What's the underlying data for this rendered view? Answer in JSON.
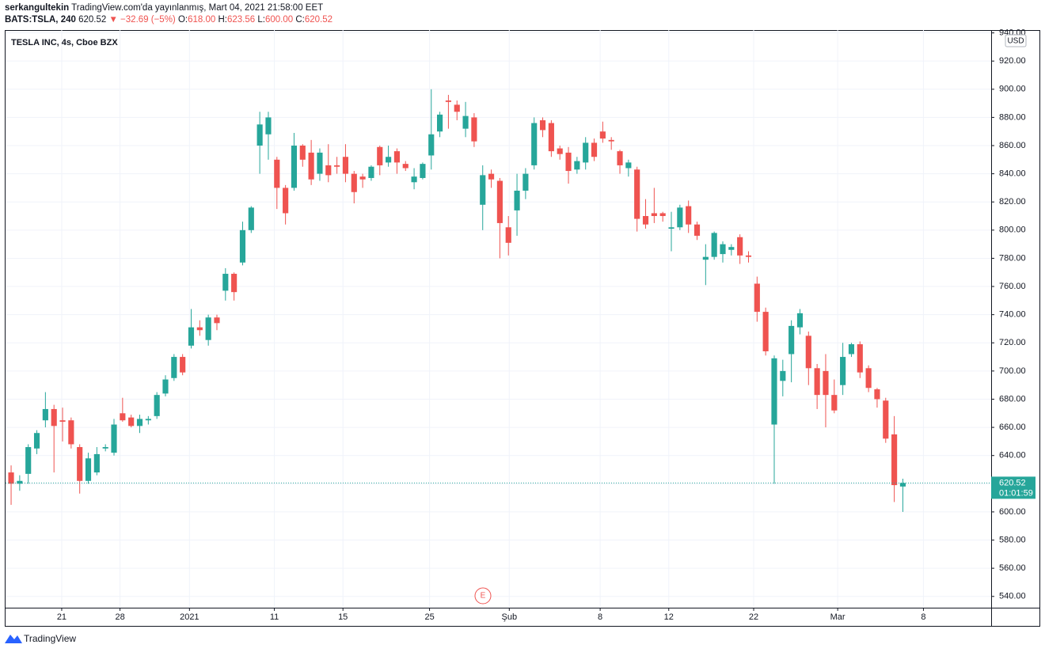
{
  "header": {
    "author": "serkangultekin",
    "published": "TradingView.com'da yayınlanmış, Mart 04, 2021 21:58:00 EET",
    "symbol": "BATS:TSLA, 240",
    "last": "620.52",
    "change": "▼ −32.69 (−5%)",
    "ohlc": [
      {
        "label": "O:",
        "value": "618.00"
      },
      {
        "label": "H:",
        "value": "623.56"
      },
      {
        "label": "L:",
        "value": "600.00"
      },
      {
        "label": "C:",
        "value": "620.52"
      }
    ]
  },
  "chart_data": {
    "type": "candlestick",
    "title": "TESLA INC, 4s, Cboe BZX",
    "currency": "USD",
    "countdown": "01:01:59",
    "up_color": "#26a69a",
    "down_color": "#ef5350",
    "grid": true,
    "events": [
      {
        "label": "E"
      }
    ],
    "open": [
      628,
      620,
      627,
      645,
      665,
      673,
      665,
      665,
      646,
      622,
      628,
      645,
      642,
      670,
      667,
      661,
      665,
      668,
      684,
      695,
      710,
      718,
      731,
      722,
      738,
      757,
      769,
      777,
      800,
      860,
      868,
      850,
      830,
      830,
      860,
      855,
      840,
      846,
      846,
      852,
      840,
      838,
      837,
      859,
      848,
      856,
      847,
      834,
      837,
      853,
      870,
      892,
      889,
      872,
      880,
      818,
      840,
      835,
      802,
      814,
      828,
      846,
      878,
      876,
      858,
      855,
      843,
      848,
      862,
      870,
      864,
      856,
      844,
      843,
      810,
      812,
      812,
      801,
      802,
      817,
      804,
      779,
      781,
      783,
      786,
      795,
      782,
      762,
      742,
      662,
      693,
      712,
      731,
      725,
      702,
      700,
      683,
      690,
      712,
      719,
      702,
      687,
      679,
      655,
      618
    ],
    "high": [
      633,
      626,
      648,
      658,
      685,
      676,
      674,
      667,
      648,
      642,
      646,
      648,
      666,
      681,
      669,
      669,
      668,
      685,
      697,
      712,
      712,
      744,
      736,
      740,
      740,
      773,
      770,
      806,
      817,
      884,
      884,
      852,
      832,
      869,
      861,
      864,
      858,
      861,
      852,
      861,
      842,
      840,
      846,
      860,
      860,
      858,
      849,
      844,
      848,
      900,
      884,
      896,
      892,
      891,
      883,
      846,
      843,
      837,
      810,
      840,
      844,
      880,
      880,
      878,
      860,
      859,
      852,
      866,
      865,
      877,
      866,
      857,
      850,
      845,
      822,
      830,
      813,
      813,
      818,
      821,
      806,
      790,
      799,
      792,
      790,
      797,
      785,
      767,
      745,
      711,
      708,
      736,
      744,
      728,
      705,
      712,
      694,
      720,
      720,
      721,
      704,
      688,
      681,
      668,
      623.56
    ],
    "low": [
      605,
      615,
      620,
      641,
      660,
      628,
      650,
      645,
      613,
      620,
      626,
      643,
      640,
      664,
      660,
      656,
      662,
      666,
      682,
      693,
      697,
      716,
      725,
      718,
      729,
      750,
      750,
      775,
      798,
      840,
      850,
      815,
      804,
      828,
      845,
      832,
      835,
      834,
      840,
      834,
      819,
      830,
      835,
      839,
      845,
      840,
      842,
      829,
      836,
      843,
      866,
      872,
      878,
      866,
      859,
      800,
      830,
      780,
      782,
      796,
      822,
      843,
      866,
      852,
      850,
      833,
      840,
      843,
      849,
      862,
      857,
      840,
      838,
      799,
      801,
      805,
      806,
      785,
      800,
      798,
      793,
      761,
      779,
      777,
      782,
      776,
      777,
      735,
      711,
      620,
      682,
      692,
      726,
      690,
      673,
      660,
      670,
      683,
      710,
      695,
      685,
      674,
      649,
      607,
      600
    ],
    "close": [
      620,
      622,
      646,
      656,
      673,
      661,
      664,
      648,
      622,
      638,
      641,
      646,
      662,
      665,
      661,
      666,
      666,
      683,
      694,
      710,
      699,
      731,
      729,
      738,
      734,
      769,
      756,
      800,
      816,
      875,
      880,
      830,
      812,
      860,
      850,
      836,
      855,
      839,
      845,
      840,
      827,
      836,
      845,
      846,
      852,
      848,
      844,
      838,
      847,
      868,
      882,
      891,
      884,
      881,
      863,
      839,
      836,
      805,
      791,
      828,
      840,
      876,
      871,
      856,
      854,
      842,
      849,
      862,
      852,
      865,
      863,
      846,
      848,
      808,
      804,
      810,
      810,
      802,
      816,
      804,
      796,
      781,
      798,
      790,
      788,
      782,
      781,
      742,
      714,
      709,
      700,
      732,
      741,
      702,
      683,
      683,
      672,
      710,
      719,
      699,
      688,
      680,
      652,
      619,
      620.52
    ],
    "xlim": [
      -0.65,
      114.3
    ],
    "xticks": [
      {
        "value": 5.9,
        "label": "21"
      },
      {
        "value": 12.7,
        "label": "28"
      },
      {
        "value": 20.8,
        "label": "2021"
      },
      {
        "value": 30.7,
        "label": "11"
      },
      {
        "value": 38.7,
        "label": "15"
      },
      {
        "value": 48.8,
        "label": "25"
      },
      {
        "value": 58.1,
        "label": "Şub"
      },
      {
        "value": 68.7,
        "label": "8"
      },
      {
        "value": 76.7,
        "label": "12"
      },
      {
        "value": 86.6,
        "label": "22"
      },
      {
        "value": 96.4,
        "label": "Mar"
      },
      {
        "value": 106.4,
        "label": "8"
      }
    ],
    "ylim": [
      532,
      942
    ],
    "yticks": [
      {
        "value": 540,
        "label": "540.00"
      },
      {
        "value": 560,
        "label": "560.00"
      },
      {
        "value": 580,
        "label": "580.00"
      },
      {
        "value": 600,
        "label": "600.00"
      },
      {
        "value": 620,
        "label": "620.00"
      },
      {
        "value": 640,
        "label": "640.00"
      },
      {
        "value": 660,
        "label": "660.00"
      },
      {
        "value": 680,
        "label": "680.00"
      },
      {
        "value": 700,
        "label": "700.00"
      },
      {
        "value": 720,
        "label": "720.00"
      },
      {
        "value": 740,
        "label": "740.00"
      },
      {
        "value": 760,
        "label": "760.00"
      },
      {
        "value": 780,
        "label": "780.00"
      },
      {
        "value": 800,
        "label": "800.00"
      },
      {
        "value": 820,
        "label": "820.00"
      },
      {
        "value": 840,
        "label": "840.00"
      },
      {
        "value": 860,
        "label": "860.00"
      },
      {
        "value": 880,
        "label": "880.00"
      },
      {
        "value": 900,
        "label": "900.00"
      },
      {
        "value": 920,
        "label": "920.00"
      },
      {
        "value": 940,
        "label": "940.00"
      }
    ]
  },
  "footer": {
    "brand": "TradingView"
  }
}
